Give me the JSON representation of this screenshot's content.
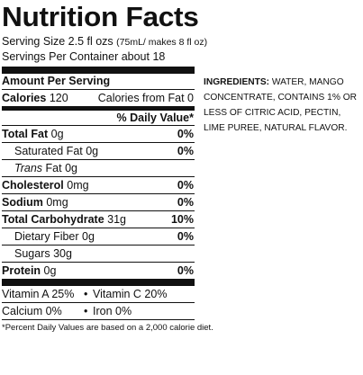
{
  "label": {
    "title": "Nutrition Facts",
    "serving_size": "Serving Size 2.5 fl ozs",
    "serving_size_note": "(75mL/ makes 8 fl oz)",
    "servings_per_container": "Servings Per Container about 18",
    "amount_per_serving": "Amount Per Serving",
    "calories_label": "Calories",
    "calories_value": "120",
    "calories_from_fat": "Calories from Fat 0",
    "daily_value_header": "% Daily Value*",
    "nutrients": [
      {
        "name": "Total Fat",
        "amount": "0g",
        "dv": "0%"
      },
      {
        "name": "Saturated Fat",
        "amount": "0g",
        "dv": "0%"
      },
      {
        "name_italic": "Trans",
        "name": "Fat",
        "amount": "0g",
        "dv": ""
      },
      {
        "name": "Cholesterol",
        "amount": "0mg",
        "dv": "0%"
      },
      {
        "name": "Sodium",
        "amount": "0mg",
        "dv": "0%"
      },
      {
        "name": "Total Carbohydrate",
        "amount": "31g",
        "dv": "10%"
      },
      {
        "name": "Dietary Fiber",
        "amount": "0g",
        "dv": "0%"
      },
      {
        "name": "Sugars",
        "amount": "30g",
        "dv": ""
      },
      {
        "name": "Protein",
        "amount": "0g",
        "dv": "0%"
      }
    ],
    "vitamins": [
      {
        "left": "Vitamin A 25%",
        "right": "Vitamin C 20%"
      },
      {
        "left": "Calcium 0%",
        "right": "Iron 0%"
      }
    ],
    "separator": "•",
    "footnote": "*Percent Daily Values are based on a 2,000 calorie diet."
  },
  "ingredients": {
    "label": "Ingredients:",
    "text": "Water, Mango Concentrate, Contains 1% or less of Citric Acid, Pectin, Lime Puree, Natural Flavor."
  }
}
